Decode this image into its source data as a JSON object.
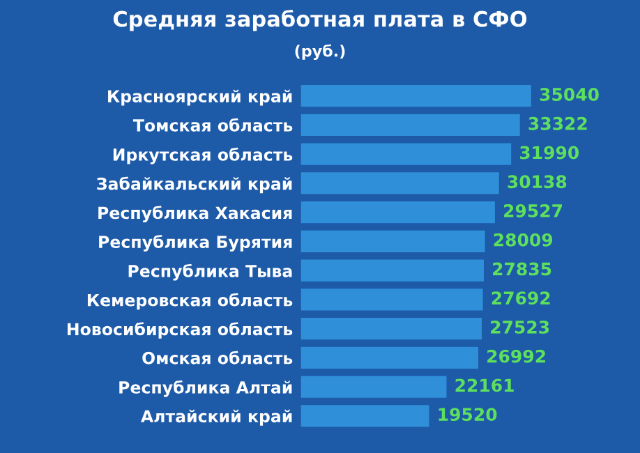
{
  "chart_data": {
    "type": "bar",
    "orientation": "horizontal",
    "title": "Средняя заработная плата в СФО",
    "subtitle": "(руб.)",
    "categories": [
      "Красноярский край",
      "Томская область",
      "Иркутская область",
      "Забайкальский край",
      "Республика Хакасия",
      "Республика Бурятия",
      "Республика Тыва",
      "Кемеровская область",
      "Новосибирская область",
      "Омская область",
      "Республика Алтай",
      "Алтайский край"
    ],
    "values": [
      35040,
      33322,
      31990,
      30138,
      29527,
      28009,
      27835,
      27692,
      27523,
      26992,
      22161,
      19520
    ],
    "color": "#2f8fd8",
    "data_labels": true
  }
}
